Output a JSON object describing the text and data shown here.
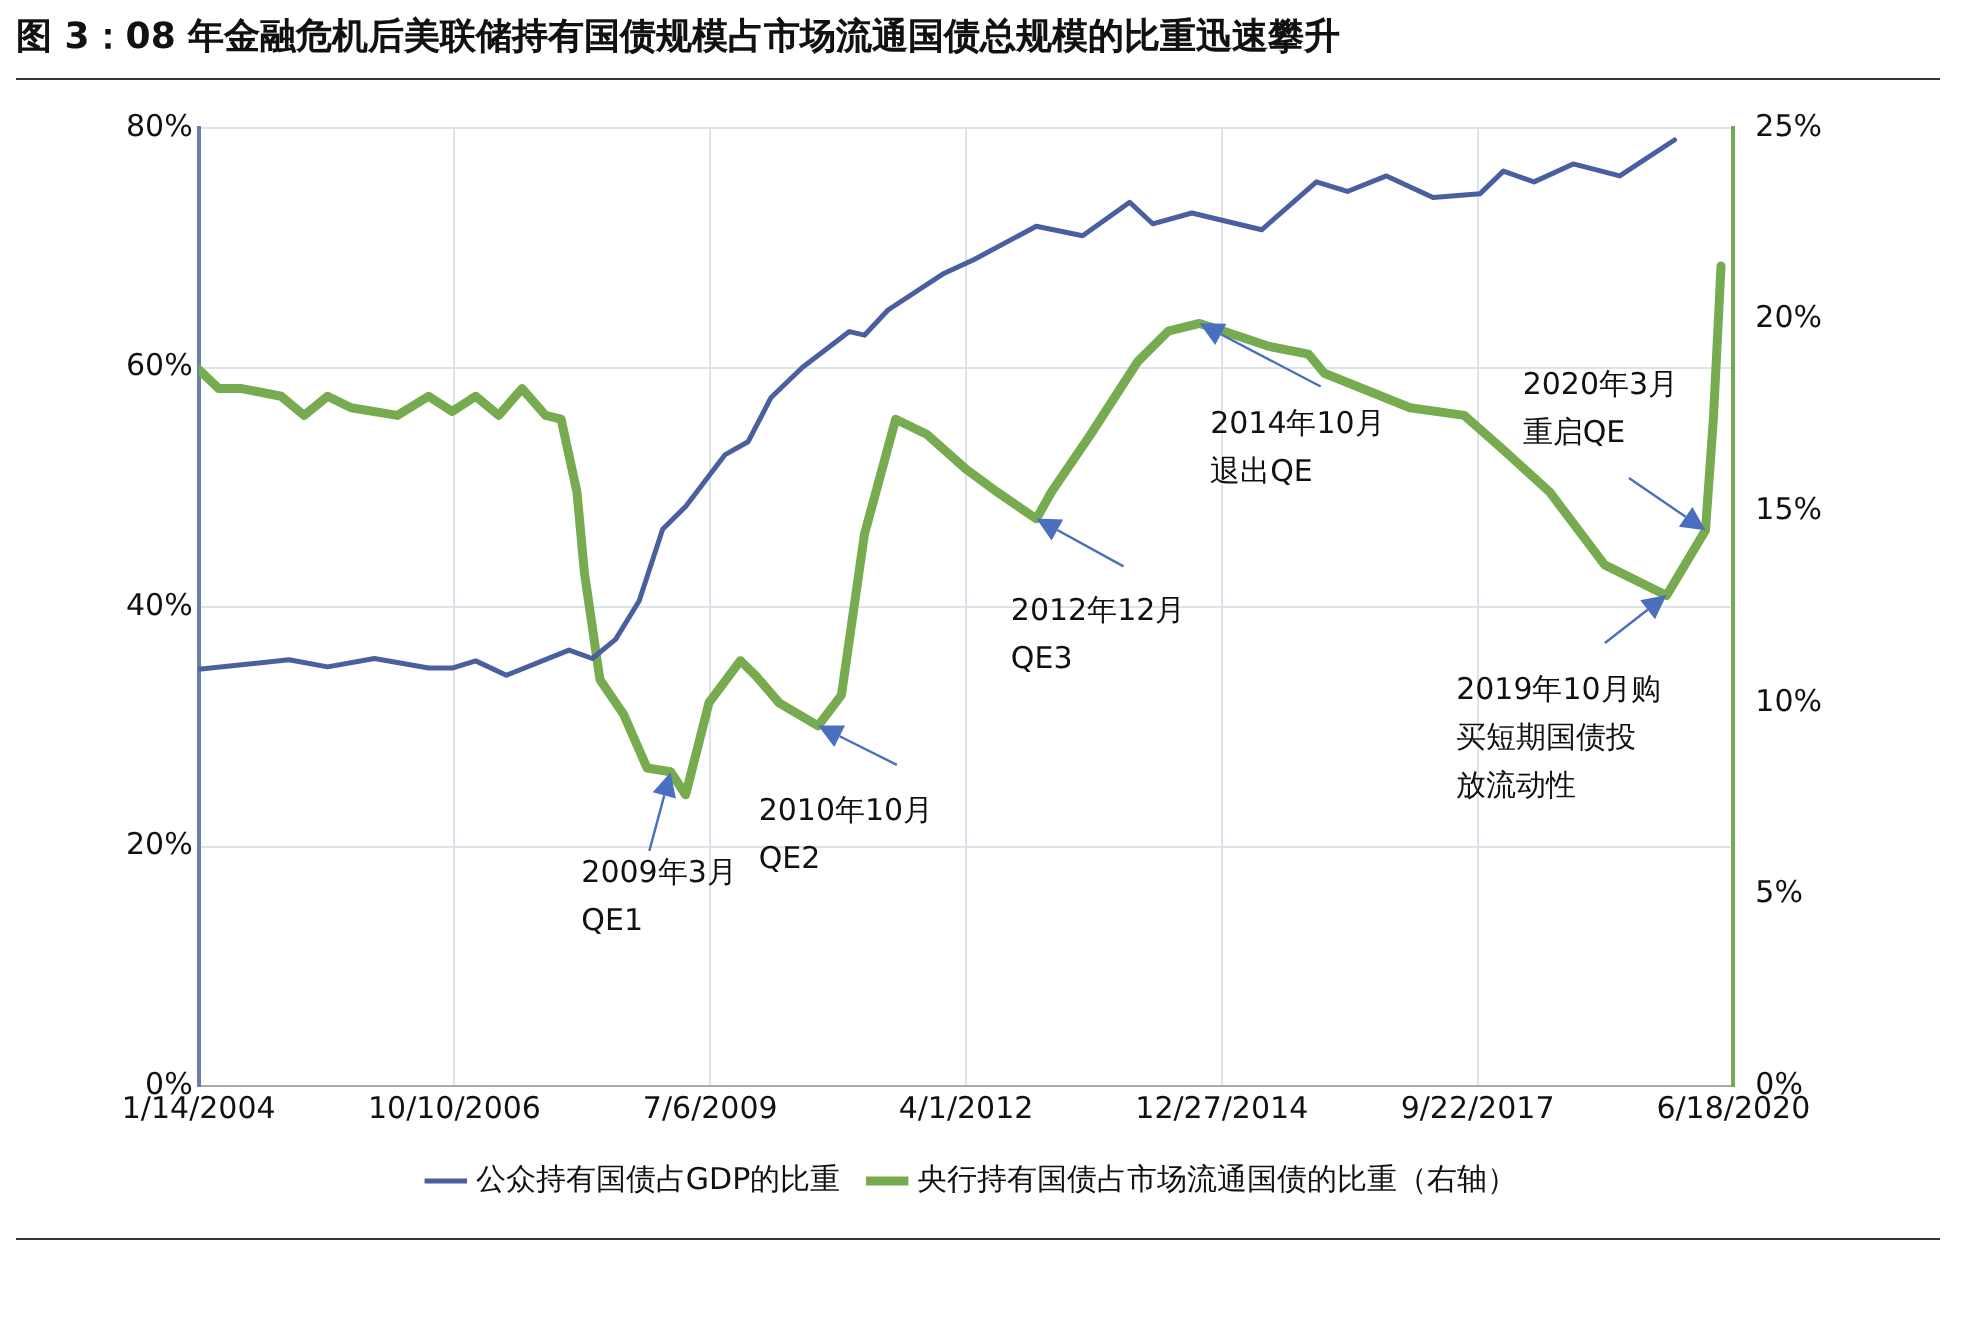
{
  "chart_data": {
    "type": "line",
    "title": "图 3：08 年金融危机后美联储持有国债规模占市场流通国债总规模的比重迅速攀升",
    "xlim": [
      "2004-01-14",
      "2020-06-18"
    ],
    "xticks": [
      {
        "value": "2004-01-14",
        "label": "1/14/2004"
      },
      {
        "value": "2006-10-10",
        "label": "10/10/2006"
      },
      {
        "value": "2009-07-06",
        "label": "7/6/2009"
      },
      {
        "value": "2012-04-01",
        "label": "4/1/2012"
      },
      {
        "value": "2014-12-27",
        "label": "12/27/2014"
      },
      {
        "value": "2017-09-22",
        "label": "9/22/2017"
      },
      {
        "value": "2020-06-18",
        "label": "6/18/2020"
      }
    ],
    "ylim": [
      0,
      80
    ],
    "yticks": [
      {
        "value": 0,
        "label": "0%"
      },
      {
        "value": 20,
        "label": "20%"
      },
      {
        "value": 40,
        "label": "40%"
      },
      {
        "value": 60,
        "label": "60%"
      },
      {
        "value": 80,
        "label": "80%"
      }
    ],
    "y2lim": [
      0,
      25
    ],
    "y2ticks": [
      {
        "value": 0,
        "label": "0%"
      },
      {
        "value": 5,
        "label": "5%"
      },
      {
        "value": 10,
        "label": "10%"
      },
      {
        "value": 15,
        "label": "15%"
      },
      {
        "value": 20,
        "label": "20%"
      },
      {
        "value": 25,
        "label": "25%"
      }
    ],
    "grid": true,
    "legend": "bottom",
    "marker": "none",
    "line_style": "solid",
    "series": [
      {
        "name": "公众持有国债占GDP的比重",
        "color": "#4a5fa0",
        "x": [
          "2004-01-14",
          "2005-01",
          "2005-06",
          "2005-12",
          "2006-07",
          "2006-10",
          "2007-01",
          "2007-05",
          "2008-01",
          "2008-04",
          "2008-07",
          "2008-10",
          "2009-01",
          "2009-04",
          "2009-09",
          "2009-12",
          "2010-03",
          "2010-07",
          "2011-01",
          "2011-03",
          "2011-06",
          "2012-01",
          "2012-05",
          "2013-01",
          "2013-07",
          "2014-01",
          "2014-04",
          "2014-09",
          "2015-06",
          "2016-01",
          "2016-05",
          "2016-10",
          "2017-04",
          "2017-10",
          "2018-01",
          "2018-05",
          "2018-10",
          "2019-04",
          "2019-11"
        ],
        "values": [
          34.8,
          35.6,
          35,
          35.7,
          34.9,
          34.9,
          35.5,
          34.3,
          36.4,
          35.7,
          37.3,
          40.5,
          46.5,
          48.4,
          52.7,
          53.8,
          57.5,
          60,
          63,
          62.7,
          64.8,
          67.8,
          69,
          71.8,
          71,
          73.8,
          72,
          72.9,
          71.5,
          75.5,
          74.7,
          76,
          74.2,
          74.5,
          76.4,
          75.5,
          77,
          76,
          79
        ]
      },
      {
        "name": "央行持有国债占市场流通国债的比重（右轴）",
        "color": "#77ab4f",
        "axis": "y2",
        "x": [
          "2004-01-14",
          "2004-04",
          "2004-07",
          "2004-12",
          "2005-03",
          "2005-06",
          "2005-09",
          "2006-03",
          "2006-07",
          "2006-10",
          "2007-01",
          "2007-04",
          "2007-07",
          "2007-10",
          "2007-12",
          "2008-02",
          "2008-03",
          "2008-05",
          "2008-08",
          "2008-11",
          "2009-02",
          "2009-04",
          "2009-07",
          "2009-11",
          "2010-01",
          "2010-04",
          "2010-09",
          "2010-12",
          "2011-03",
          "2011-07",
          "2011-11",
          "2012-04",
          "2012-08",
          "2013-01",
          "2013-03",
          "2013-08",
          "2014-02",
          "2014-06",
          "2014-10",
          "2015-01",
          "2015-07",
          "2015-12",
          "2016-02",
          "2017-01",
          "2017-08",
          "2018-01",
          "2018-07",
          "2019-02",
          "2019-10",
          "2020-03",
          "2020-04",
          "2020-05"
        ],
        "values": [
          18.7,
          18.2,
          18.2,
          18,
          17.5,
          18,
          17.7,
          17.5,
          18,
          17.6,
          18,
          17.5,
          18.2,
          17.5,
          17.4,
          15.5,
          13.4,
          10.6,
          9.7,
          8.3,
          8.2,
          7.6,
          10,
          11.1,
          10.7,
          10,
          9.4,
          10.2,
          14.4,
          17.4,
          17,
          16.1,
          15.5,
          14.8,
          15.5,
          17,
          18.9,
          19.7,
          19.9,
          19.7,
          19.3,
          19.1,
          18.6,
          17.7,
          17.5,
          16.6,
          15.5,
          13.6,
          12.8,
          14.5,
          17.4,
          21.4
        ]
      }
    ],
    "annotations": [
      {
        "text": "2009年3月QE1",
        "x": "2009-02",
        "y": 26.2
      },
      {
        "text": "2010年10月QE2",
        "x": "2010-09",
        "y": 30.1
      },
      {
        "text": "2012年12月QE3",
        "x": "2013-01",
        "y": 47.4
      },
      {
        "text": "2014年10月退出QE",
        "x": "2014-10",
        "y": 63.7
      },
      {
        "text": "2020年3月重启QE",
        "x": "2020-03",
        "y": 46.4
      },
      {
        "text": "2019年10月购买短期国债投放流动性",
        "x": "2019-10",
        "y": 41
      }
    ]
  }
}
